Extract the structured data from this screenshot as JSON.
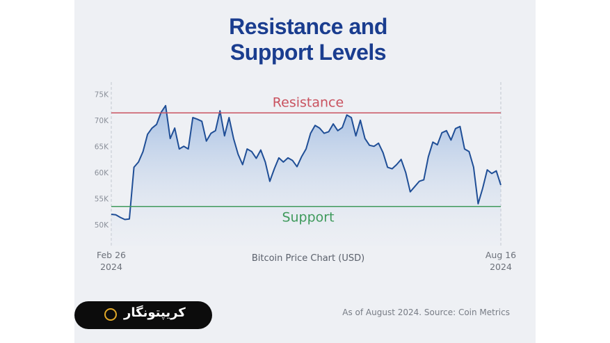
{
  "chart_data": {
    "type": "line",
    "title": "Resistance and Support Levels",
    "x_label": "Bitcoin Price Chart (USD)",
    "source": "As of August 2024. Source: Coin Metrics",
    "brand": "کریپتونگار",
    "color": "#1f4e96",
    "x": [
      "2024-02-26",
      "2024-02-28",
      "2024-03-01",
      "2024-03-03",
      "2024-03-05",
      "2024-03-07",
      "2024-03-09",
      "2024-03-11",
      "2024-03-13",
      "2024-03-15",
      "2024-03-17",
      "2024-03-19",
      "2024-03-21",
      "2024-03-23",
      "2024-03-25",
      "2024-03-27",
      "2024-03-29",
      "2024-03-31",
      "2024-04-02",
      "2024-04-04",
      "2024-04-06",
      "2024-04-08",
      "2024-04-10",
      "2024-04-12",
      "2024-04-14",
      "2024-04-16",
      "2024-04-18",
      "2024-04-20",
      "2024-04-22",
      "2024-04-24",
      "2024-04-26",
      "2024-04-28",
      "2024-04-30",
      "2024-05-02",
      "2024-05-04",
      "2024-05-06",
      "2024-05-08",
      "2024-05-10",
      "2024-05-12",
      "2024-05-14",
      "2024-05-16",
      "2024-05-18",
      "2024-05-20",
      "2024-05-22",
      "2024-05-24",
      "2024-05-26",
      "2024-05-28",
      "2024-05-30",
      "2024-06-01",
      "2024-06-03",
      "2024-06-05",
      "2024-06-07",
      "2024-06-09",
      "2024-06-11",
      "2024-06-13",
      "2024-06-15",
      "2024-06-17",
      "2024-06-19",
      "2024-06-21",
      "2024-06-23",
      "2024-06-25",
      "2024-06-27",
      "2024-06-29",
      "2024-07-01",
      "2024-07-03",
      "2024-07-05",
      "2024-07-07",
      "2024-07-09",
      "2024-07-11",
      "2024-07-13",
      "2024-07-15",
      "2024-07-17",
      "2024-07-19",
      "2024-07-21",
      "2024-07-23",
      "2024-07-25",
      "2024-07-27",
      "2024-07-29",
      "2024-07-31",
      "2024-08-02",
      "2024-08-04",
      "2024-08-06",
      "2024-08-08",
      "2024-08-10",
      "2024-08-12",
      "2024-08-14",
      "2024-08-16"
    ],
    "values": [
      52000,
      51900,
      51400,
      51000,
      51100,
      61000,
      62000,
      64000,
      67300,
      68500,
      69200,
      71500,
      72800,
      66500,
      68500,
      64500,
      65000,
      64500,
      70500,
      70200,
      69800,
      66000,
      67500,
      68000,
      71800,
      67000,
      70500,
      66500,
      63500,
      61500,
      64500,
      64000,
      62700,
      64300,
      62000,
      58300,
      60700,
      62800,
      62000,
      62800,
      62300,
      61100,
      63000,
      64500,
      67500,
      69000,
      68500,
      67500,
      67800,
      69300,
      68000,
      68600,
      71000,
      70500,
      67000,
      70000,
      66500,
      65200,
      65000,
      65600,
      63800,
      61000,
      60700,
      61500,
      62500,
      60000,
      56300,
      57300,
      58300,
      58600,
      63000,
      65800,
      65300,
      67600,
      68000,
      66200,
      68400,
      68800,
      64500,
      64000,
      61000,
      54000,
      57000,
      60500,
      59800,
      60300,
      57600
    ],
    "xlim": [
      "2024-02-26",
      "2024-08-16"
    ],
    "xticks": [
      {
        "value": "2024-02-26",
        "label": [
          "Feb 26",
          "2024"
        ]
      },
      {
        "value": "2024-08-16",
        "label": [
          "Aug 16",
          "2024"
        ]
      }
    ],
    "ylim": [
      46000,
      76500
    ],
    "yticks": [
      {
        "value": 50000,
        "label": "50K"
      },
      {
        "value": 55000,
        "label": "55K"
      },
      {
        "value": 60000,
        "label": "60K"
      },
      {
        "value": 65000,
        "label": "65K"
      },
      {
        "value": 70000,
        "label": "70K"
      },
      {
        "value": 75000,
        "label": "75K"
      }
    ],
    "annotations": [
      {
        "label": "Resistance",
        "value": 71400,
        "color": "#c9525f",
        "side": "above"
      },
      {
        "label": "Support",
        "value": 53500,
        "color": "#3f9a5c",
        "side": "below"
      }
    ]
  }
}
